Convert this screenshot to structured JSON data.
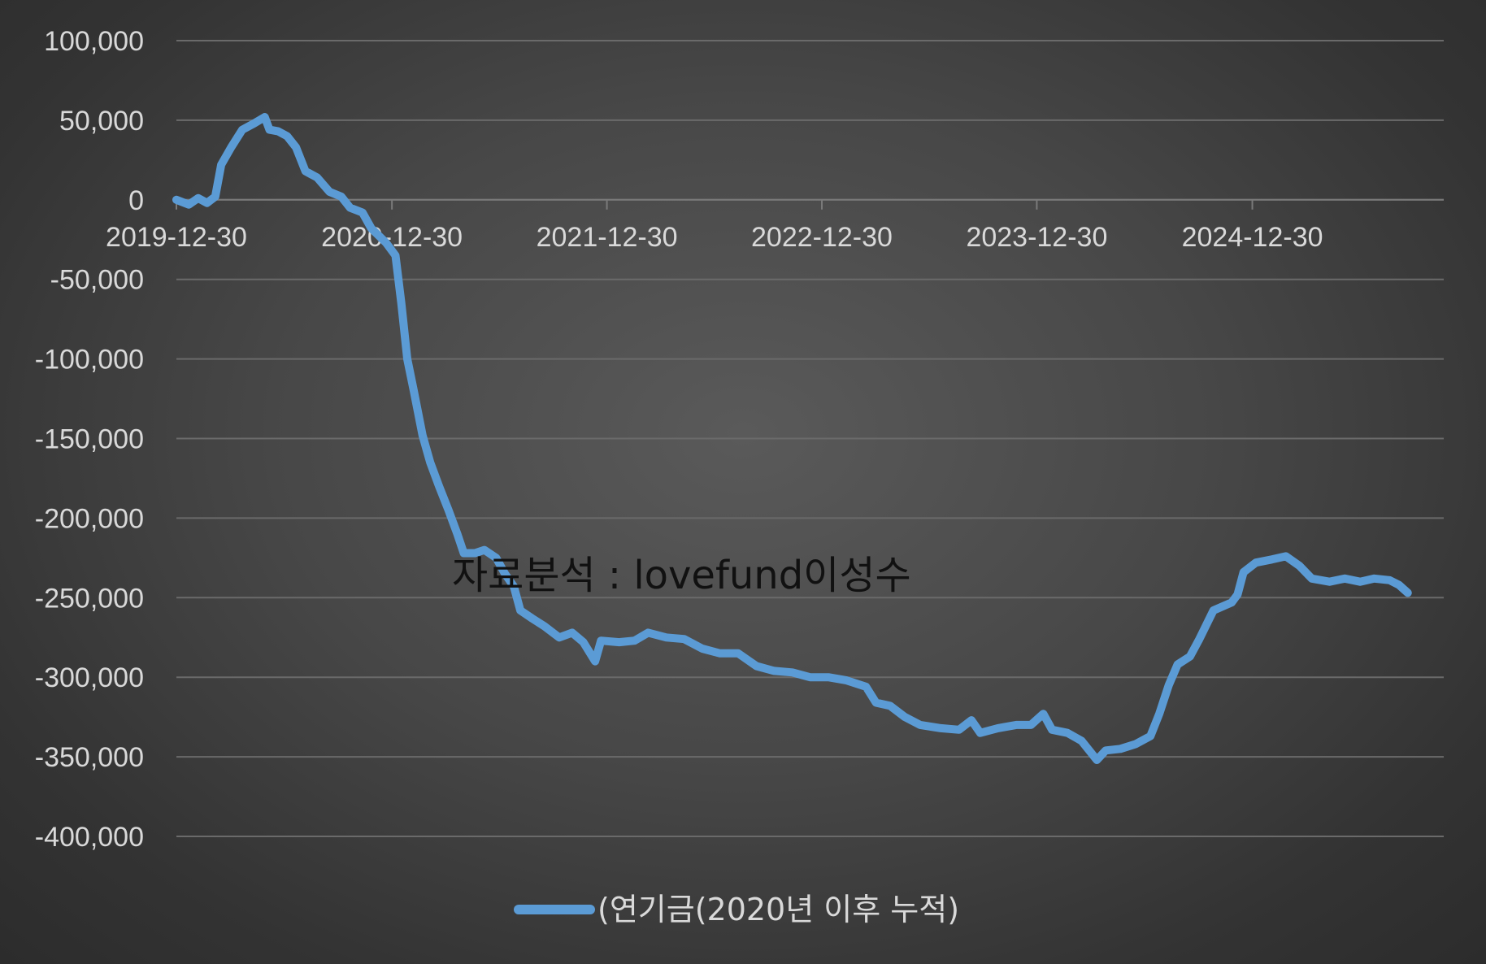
{
  "watermark": "자료분석 : lovefund이성수",
  "chart_data": {
    "type": "line",
    "title": "",
    "xlabel": "",
    "ylabel": "",
    "ylim": [
      -400000,
      100000
    ],
    "y_ticks": [
      100000,
      50000,
      0,
      -50000,
      -100000,
      -150000,
      -200000,
      -250000,
      -300000,
      -350000,
      -400000
    ],
    "y_tick_labels": [
      "100,000",
      "50,000",
      "0",
      "-50,000",
      "-100,000",
      "-150,000",
      "-200,000",
      "-250,000",
      "-300,000",
      "-350,000",
      "-400,000"
    ],
    "x_range": [
      "2019-12-30",
      "2025-11-20"
    ],
    "x_ticks": [
      "2019-12-30",
      "2020-12-30",
      "2021-12-30",
      "2022-12-30",
      "2023-12-30",
      "2024-12-30"
    ],
    "grid": true,
    "legend_position": "bottom",
    "series": [
      {
        "name": "(연기금(2020년 이후 누적)",
        "color": "#5b9bd5",
        "points": [
          [
            "2019-12-30",
            0
          ],
          [
            "2020-01-20",
            -3000
          ],
          [
            "2020-02-05",
            1000
          ],
          [
            "2020-02-20",
            -2000
          ],
          [
            "2020-03-05",
            2000
          ],
          [
            "2020-03-15",
            22000
          ],
          [
            "2020-04-01",
            33000
          ],
          [
            "2020-04-20",
            44000
          ],
          [
            "2020-05-10",
            48000
          ],
          [
            "2020-05-28",
            52000
          ],
          [
            "2020-06-05",
            44000
          ],
          [
            "2020-06-20",
            43000
          ],
          [
            "2020-07-05",
            40000
          ],
          [
            "2020-07-20",
            33000
          ],
          [
            "2020-08-05",
            18000
          ],
          [
            "2020-08-25",
            14000
          ],
          [
            "2020-09-15",
            5000
          ],
          [
            "2020-10-05",
            2000
          ],
          [
            "2020-10-20",
            -5000
          ],
          [
            "2020-11-10",
            -8000
          ],
          [
            "2020-11-25",
            -18000
          ],
          [
            "2020-12-20",
            -27000
          ],
          [
            "2021-01-05",
            -35000
          ],
          [
            "2021-01-15",
            -65000
          ],
          [
            "2021-01-25",
            -100000
          ],
          [
            "2021-02-05",
            -120000
          ],
          [
            "2021-02-20",
            -148000
          ],
          [
            "2021-03-05",
            -165000
          ],
          [
            "2021-03-20",
            -180000
          ],
          [
            "2021-04-05",
            -195000
          ],
          [
            "2021-04-20",
            -210000
          ],
          [
            "2021-05-01",
            -222000
          ],
          [
            "2021-05-20",
            -222000
          ],
          [
            "2021-06-05",
            -220000
          ],
          [
            "2021-06-25",
            -225000
          ],
          [
            "2021-07-10",
            -235000
          ],
          [
            "2021-07-25",
            -243000
          ],
          [
            "2021-08-05",
            -258000
          ],
          [
            "2021-08-25",
            -263000
          ],
          [
            "2021-09-15",
            -268000
          ],
          [
            "2021-10-10",
            -275000
          ],
          [
            "2021-11-01",
            -272000
          ],
          [
            "2021-11-20",
            -278000
          ],
          [
            "2021-12-10",
            -290000
          ],
          [
            "2021-12-20",
            -277000
          ],
          [
            "2022-01-20",
            -278000
          ],
          [
            "2022-02-15",
            -277000
          ],
          [
            "2022-03-10",
            -272000
          ],
          [
            "2022-04-10",
            -275000
          ],
          [
            "2022-05-10",
            -276000
          ],
          [
            "2022-06-10",
            -282000
          ],
          [
            "2022-07-10",
            -285000
          ],
          [
            "2022-08-10",
            -285000
          ],
          [
            "2022-09-10",
            -293000
          ],
          [
            "2022-10-10",
            -296000
          ],
          [
            "2022-11-10",
            -297000
          ],
          [
            "2022-12-10",
            -300000
          ],
          [
            "2023-01-10",
            -300000
          ],
          [
            "2023-02-10",
            -302000
          ],
          [
            "2023-03-15",
            -306000
          ],
          [
            "2023-04-01",
            -316000
          ],
          [
            "2023-04-25",
            -318000
          ],
          [
            "2023-05-20",
            -325000
          ],
          [
            "2023-06-15",
            -330000
          ],
          [
            "2023-07-20",
            -332000
          ],
          [
            "2023-08-20",
            -333000
          ],
          [
            "2023-09-10",
            -327000
          ],
          [
            "2023-09-25",
            -335000
          ],
          [
            "2023-10-25",
            -332000
          ],
          [
            "2023-11-25",
            -330000
          ],
          [
            "2023-12-20",
            -330000
          ],
          [
            "2024-01-10",
            -323000
          ],
          [
            "2024-01-25",
            -333000
          ],
          [
            "2024-02-20",
            -335000
          ],
          [
            "2024-03-15",
            -340000
          ],
          [
            "2024-04-10",
            -352000
          ],
          [
            "2024-04-25",
            -346000
          ],
          [
            "2024-05-20",
            -345000
          ],
          [
            "2024-06-15",
            -342000
          ],
          [
            "2024-07-10",
            -337000
          ],
          [
            "2024-07-25",
            -323000
          ],
          [
            "2024-08-10",
            -305000
          ],
          [
            "2024-08-25",
            -292000
          ],
          [
            "2024-09-15",
            -287000
          ],
          [
            "2024-10-01",
            -276000
          ],
          [
            "2024-10-25",
            -258000
          ],
          [
            "2024-11-25",
            -253000
          ],
          [
            "2024-12-05",
            -248000
          ],
          [
            "2024-12-15",
            -234000
          ],
          [
            "2025-01-05",
            -228000
          ],
          [
            "2025-02-01",
            -226000
          ],
          [
            "2025-02-25",
            -224000
          ],
          [
            "2025-03-20",
            -230000
          ],
          [
            "2025-04-10",
            -238000
          ],
          [
            "2025-05-10",
            -240000
          ],
          [
            "2025-06-05",
            -238000
          ],
          [
            "2025-07-01",
            -240000
          ],
          [
            "2025-07-25",
            -238000
          ],
          [
            "2025-08-20",
            -239000
          ],
          [
            "2025-09-05",
            -242000
          ],
          [
            "2025-09-20",
            -247000
          ]
        ]
      }
    ]
  }
}
